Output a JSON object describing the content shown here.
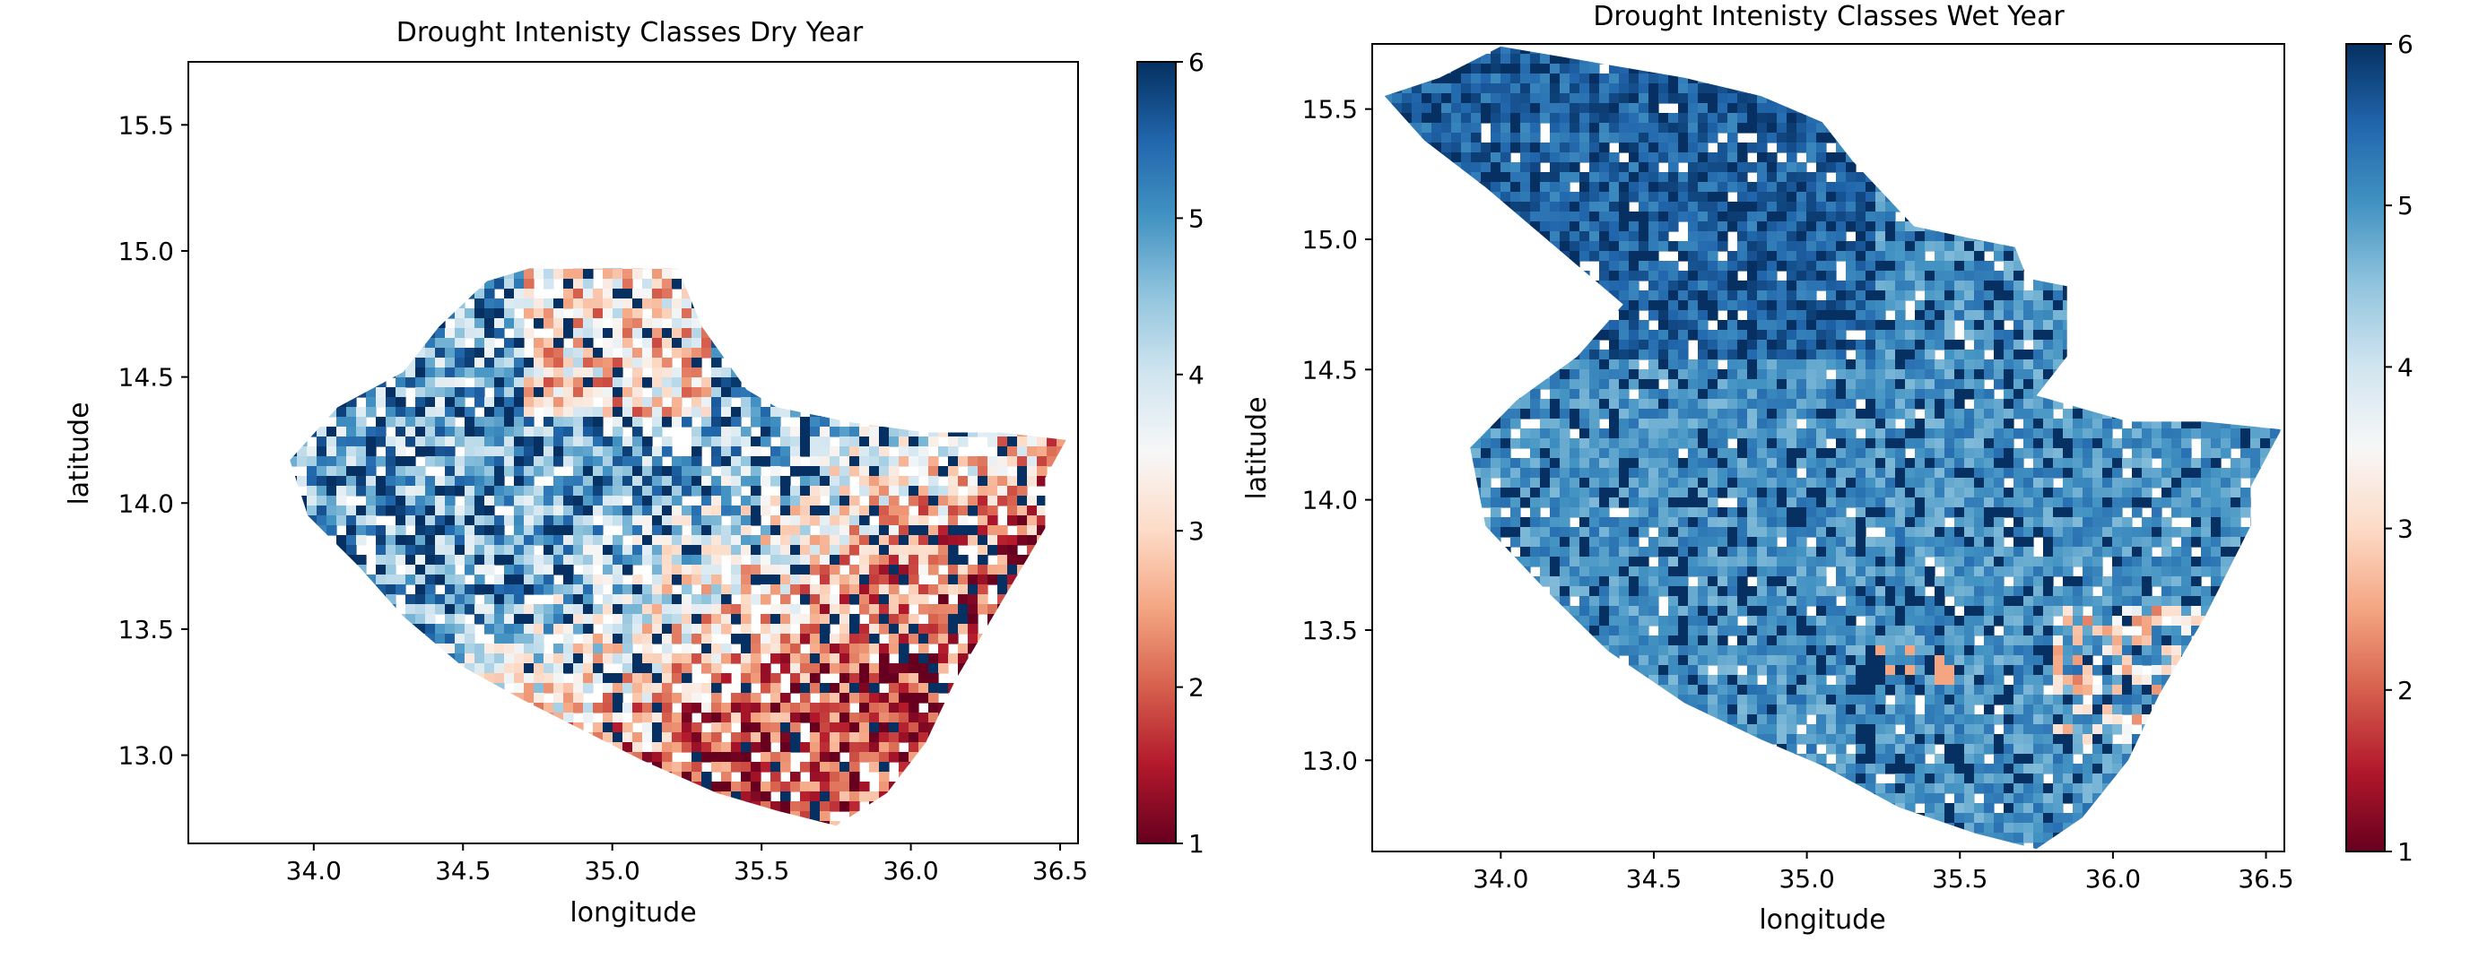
{
  "chart_data": [
    {
      "type": "heatmap",
      "title": "Drought Intenisty Classes Dry Year",
      "xlabel": "longitude",
      "ylabel": "latitude",
      "xlim": [
        33.58,
        36.56
      ],
      "ylim": [
        12.65,
        15.75
      ],
      "xticks": [
        "34.0",
        "34.5",
        "35.0",
        "35.5",
        "36.0",
        "36.5"
      ],
      "yticks": [
        "13.0",
        "13.5",
        "14.0",
        "14.5",
        "15.0",
        "15.5"
      ],
      "colorbar": {
        "min": 1,
        "max": 6,
        "ticks": [
          "1",
          "2",
          "3",
          "4",
          "5",
          "6"
        ],
        "colormap": "RdBu"
      },
      "value_range": [
        1,
        6
      ],
      "grid": false
    },
    {
      "type": "heatmap",
      "title": "Drought Intenisty Classes Wet Year",
      "xlabel": "longitude",
      "ylabel": "latitude",
      "xlim": [
        33.58,
        36.56
      ],
      "ylim": [
        12.65,
        15.75
      ],
      "xticks": [
        "34.0",
        "34.5",
        "35.0",
        "35.5",
        "36.0",
        "36.5"
      ],
      "yticks": [
        "13.0",
        "13.5",
        "14.0",
        "14.5",
        "15.0",
        "15.5"
      ],
      "colorbar": {
        "min": 1,
        "max": 6,
        "ticks": [
          "1",
          "2",
          "3",
          "4",
          "5",
          "6"
        ],
        "colormap": "RdBu"
      },
      "value_range": [
        1,
        6
      ],
      "grid": false
    }
  ]
}
